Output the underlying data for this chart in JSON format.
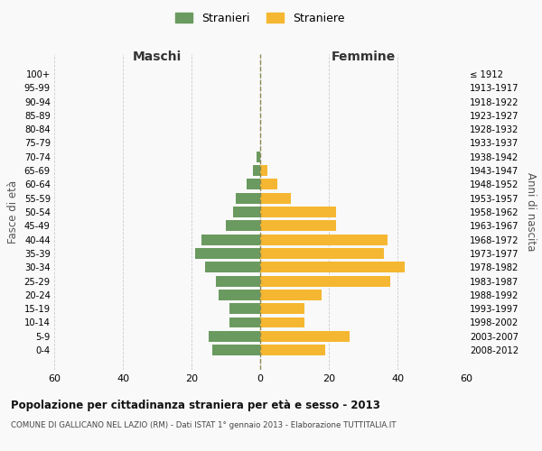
{
  "age_groups": [
    "100+",
    "95-99",
    "90-94",
    "85-89",
    "80-84",
    "75-79",
    "70-74",
    "65-69",
    "60-64",
    "55-59",
    "50-54",
    "45-49",
    "40-44",
    "35-39",
    "30-34",
    "25-29",
    "20-24",
    "15-19",
    "10-14",
    "5-9",
    "0-4"
  ],
  "birth_years": [
    "≤ 1912",
    "1913-1917",
    "1918-1922",
    "1923-1927",
    "1928-1932",
    "1933-1937",
    "1938-1942",
    "1943-1947",
    "1948-1952",
    "1953-1957",
    "1958-1962",
    "1963-1967",
    "1968-1972",
    "1973-1977",
    "1978-1982",
    "1983-1987",
    "1988-1992",
    "1993-1997",
    "1998-2002",
    "2003-2007",
    "2008-2012"
  ],
  "males": [
    0,
    0,
    0,
    0,
    0,
    0,
    1,
    2,
    4,
    7,
    8,
    10,
    17,
    19,
    16,
    13,
    12,
    9,
    9,
    15,
    14
  ],
  "females": [
    0,
    0,
    0,
    0,
    0,
    0,
    0,
    2,
    5,
    9,
    22,
    22,
    37,
    36,
    42,
    38,
    18,
    13,
    13,
    26,
    19
  ],
  "male_color": "#6a9a5f",
  "female_color": "#f5b731",
  "grid_color": "#cccccc",
  "center_line_color": "#8a8a50",
  "background_color": "#f9f9f9",
  "title": "Popolazione per cittadinanza straniera per età e sesso - 2013",
  "subtitle": "COMUNE DI GALLICANO NEL LAZIO (RM) - Dati ISTAT 1° gennaio 2013 - Elaborazione TUTTITALIA.IT",
  "xlabel_left": "Maschi",
  "xlabel_right": "Femmine",
  "ylabel_left": "Fasce di età",
  "ylabel_right": "Anni di nascita",
  "legend_male": "Stranieri",
  "legend_female": "Straniere",
  "xlim": 60
}
